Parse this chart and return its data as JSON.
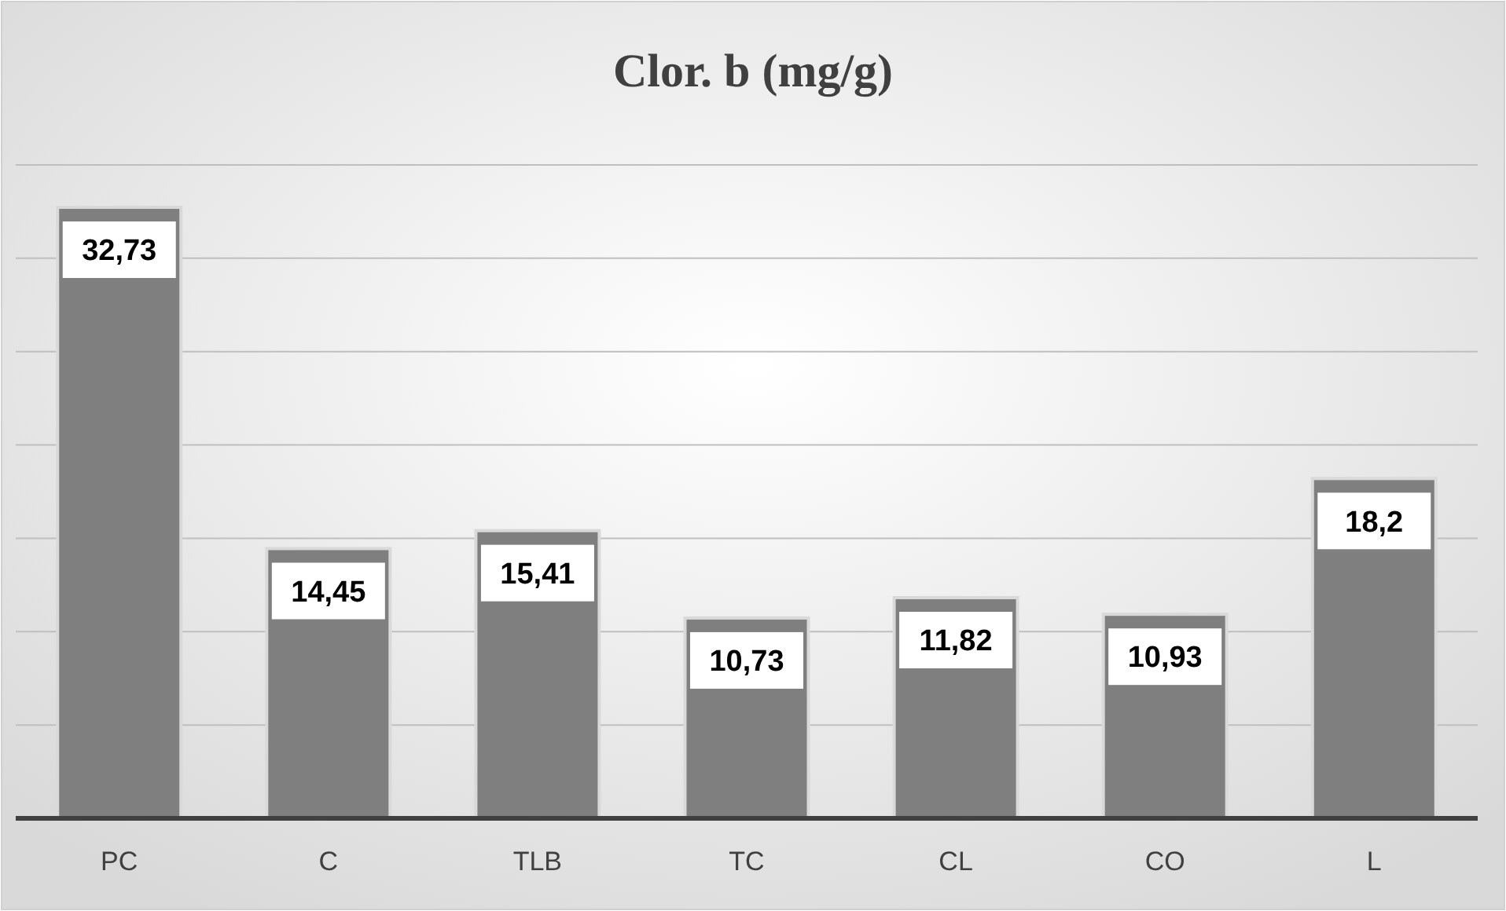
{
  "chart_data": {
    "type": "bar",
    "title": "Clor. b (mg/g)",
    "categories": [
      "PC",
      "C",
      "TLB",
      "TC",
      "CL",
      "CO",
      "L"
    ],
    "values": [
      32.73,
      14.45,
      15.41,
      10.73,
      11.82,
      10.93,
      18.2
    ],
    "value_labels": [
      "32,73",
      "14,45",
      "15,41",
      "10,73",
      "11,82",
      "10,93",
      "18,2"
    ],
    "color": "#7f7f7f",
    "ylim": [
      0,
      35
    ],
    "yticks": [
      {
        "value": 0,
        "label": null
      },
      {
        "value": 5,
        "label": null
      },
      {
        "value": 10,
        "label": null
      },
      {
        "value": 15,
        "label": null
      },
      {
        "value": 20,
        "label": null
      },
      {
        "value": 25,
        "label": null
      },
      {
        "value": 30,
        "label": null
      },
      {
        "value": 35,
        "label": null
      }
    ],
    "tick_labels": "x",
    "grid": "y"
  }
}
